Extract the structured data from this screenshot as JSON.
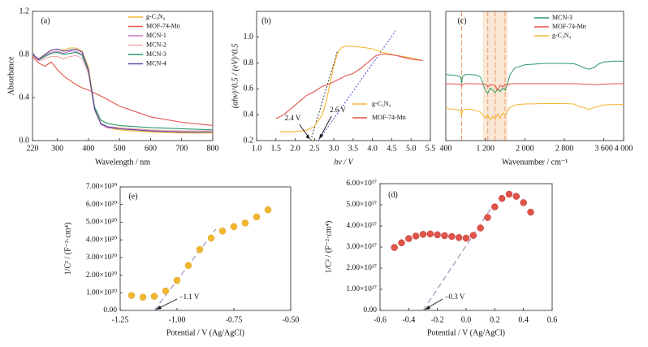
{
  "chart_data": [
    {
      "panel": "(a)",
      "type": "line",
      "xlabel": "Wavelength / nm",
      "ylabel": "Absorbance",
      "xlim": [
        220,
        800
      ],
      "ylim": [
        0.0,
        1.2
      ],
      "xticks": [
        "220",
        "300",
        "400",
        "500",
        "600",
        "700",
        "800"
      ],
      "yticks": [
        "0.0",
        "0.4",
        "0.8",
        "1.2"
      ],
      "legend_position": "top-right",
      "series": [
        {
          "name": "g-C₃N₄",
          "color": "#f2b630",
          "x": [
            220,
            240,
            260,
            280,
            300,
            320,
            340,
            360,
            380,
            400,
            410,
            420,
            440,
            460,
            500,
            600,
            700,
            800
          ],
          "y": [
            0.8,
            0.76,
            0.8,
            0.84,
            0.85,
            0.84,
            0.86,
            0.86,
            0.83,
            0.68,
            0.5,
            0.3,
            0.16,
            0.12,
            0.1,
            0.08,
            0.07,
            0.07
          ]
        },
        {
          "name": "MOF-74-Mn",
          "color": "#e2534a",
          "x": [
            220,
            240,
            260,
            280,
            300,
            320,
            340,
            360,
            380,
            400,
            450,
            500,
            600,
            700,
            800
          ],
          "y": [
            0.78,
            0.72,
            0.69,
            0.73,
            0.66,
            0.6,
            0.56,
            0.52,
            0.49,
            0.47,
            0.4,
            0.32,
            0.22,
            0.17,
            0.14
          ]
        },
        {
          "name": "MCN-1",
          "color": "#d175c9",
          "x": [
            220,
            240,
            260,
            280,
            300,
            320,
            340,
            360,
            380,
            400,
            410,
            420,
            440,
            460,
            500,
            600,
            700,
            800
          ],
          "y": [
            0.8,
            0.76,
            0.79,
            0.82,
            0.83,
            0.81,
            0.83,
            0.83,
            0.8,
            0.64,
            0.46,
            0.28,
            0.15,
            0.12,
            0.11,
            0.09,
            0.08,
            0.08
          ]
        },
        {
          "name": "MCN-2",
          "color": "#f2a8a8",
          "x": [
            220,
            240,
            260,
            280,
            300,
            320,
            340,
            360,
            380,
            400,
            410,
            420,
            440,
            460,
            500,
            600,
            700,
            800
          ],
          "y": [
            0.79,
            0.74,
            0.76,
            0.78,
            0.78,
            0.76,
            0.78,
            0.79,
            0.76,
            0.62,
            0.45,
            0.28,
            0.16,
            0.13,
            0.12,
            0.1,
            0.09,
            0.09
          ]
        },
        {
          "name": "MCN-3",
          "color": "#2a9a6a",
          "x": [
            220,
            240,
            260,
            280,
            300,
            320,
            340,
            360,
            380,
            400,
            410,
            420,
            440,
            460,
            500,
            600,
            700,
            800
          ],
          "y": [
            0.8,
            0.75,
            0.78,
            0.81,
            0.82,
            0.8,
            0.81,
            0.82,
            0.79,
            0.65,
            0.48,
            0.31,
            0.19,
            0.16,
            0.14,
            0.12,
            0.11,
            0.1
          ]
        },
        {
          "name": "MCN-4",
          "color": "#5b4aa0",
          "x": [
            220,
            240,
            260,
            280,
            300,
            320,
            340,
            360,
            380,
            400,
            410,
            420,
            440,
            460,
            500,
            600,
            700,
            800
          ],
          "y": [
            0.8,
            0.75,
            0.8,
            0.84,
            0.85,
            0.83,
            0.84,
            0.85,
            0.82,
            0.66,
            0.47,
            0.29,
            0.16,
            0.13,
            0.11,
            0.09,
            0.08,
            0.08
          ]
        }
      ]
    },
    {
      "panel": "(b)",
      "type": "line",
      "xlabel": "hν / V",
      "ylabel": "(αhν)^0.5 / (eV)^0.5",
      "xlim": [
        1.0,
        5.5
      ],
      "ylim": [
        0.2,
        1.2
      ],
      "xticks": [
        "1.0",
        "1.5",
        "2.0",
        "2.5",
        "3.0",
        "3.5",
        "4.0",
        "4.5",
        "5.0",
        "5.5"
      ],
      "yticks": [
        "0.2",
        "0.4",
        "0.6",
        "0.8",
        "1.0"
      ],
      "legend_position": "bottom-right",
      "series": [
        {
          "name": "g-C₃N₄",
          "color": "#f2b630",
          "x": [
            1.6,
            2.0,
            2.3,
            2.5,
            2.7,
            2.8,
            2.9,
            3.0,
            3.1,
            3.2,
            3.3,
            3.5,
            3.8,
            4.0,
            4.3,
            4.6,
            5.0,
            5.3
          ],
          "y": [
            0.27,
            0.27,
            0.28,
            0.31,
            0.4,
            0.5,
            0.64,
            0.78,
            0.88,
            0.92,
            0.93,
            0.93,
            0.92,
            0.91,
            0.88,
            0.86,
            0.84,
            0.82
          ]
        },
        {
          "name": "MOF-74-Mn",
          "color": "#e2534a",
          "x": [
            1.5,
            1.7,
            1.9,
            2.1,
            2.3,
            2.5,
            2.7,
            2.9,
            3.1,
            3.3,
            3.5,
            3.7,
            3.9,
            4.1,
            4.3,
            4.6,
            5.0,
            5.3
          ],
          "y": [
            0.37,
            0.4,
            0.45,
            0.5,
            0.55,
            0.58,
            0.62,
            0.64,
            0.67,
            0.7,
            0.72,
            0.76,
            0.81,
            0.86,
            0.87,
            0.86,
            0.83,
            0.82
          ]
        }
      ],
      "fits": [
        {
          "style": "dotted-black",
          "x": [
            2.4,
            3.1
          ],
          "y": [
            0.2,
            0.9
          ]
        },
        {
          "style": "dotted-blue",
          "x": [
            2.6,
            4.6
          ],
          "y": [
            0.2,
            1.05
          ]
        }
      ],
      "annotations": [
        {
          "text": "2.4 V",
          "x": 2.4,
          "y": 0.2
        },
        {
          "text": "2.6 V",
          "x": 2.6,
          "y": 0.2
        }
      ]
    },
    {
      "panel": "(c)",
      "type": "line",
      "xlabel": "Wavenumber / cm⁻¹",
      "xlim": [
        400,
        4000
      ],
      "xticks": [
        "400",
        "1 200",
        "2 000",
        "2 800",
        "3 600",
        "4 000"
      ],
      "legend_position": "top-left",
      "highlight_bands": [
        [
          1150,
          1650
        ]
      ],
      "marker_lines": [
        720,
        1250,
        1400,
        1600
      ],
      "series": [
        {
          "name": "MCN-3",
          "color": "#2a9a6a",
          "x": [
            400,
            600,
            700,
            720,
            740,
            800,
            900,
            1000,
            1100,
            1200,
            1250,
            1300,
            1350,
            1400,
            1450,
            1500,
            1550,
            1600,
            1650,
            1700,
            1800,
            2000,
            2400,
            2800,
            3000,
            3100,
            3200,
            3300,
            3400,
            3500,
            3600,
            3800,
            4000
          ],
          "y": [
            0.6,
            0.58,
            0.55,
            0.4,
            0.56,
            0.6,
            0.6,
            0.59,
            0.55,
            0.25,
            0.18,
            0.3,
            0.25,
            0.2,
            0.28,
            0.22,
            0.3,
            0.25,
            0.4,
            0.6,
            0.75,
            0.82,
            0.85,
            0.85,
            0.84,
            0.8,
            0.75,
            0.72,
            0.76,
            0.84,
            0.88,
            0.9,
            0.9
          ]
        },
        {
          "name": "MOF-74-Mn",
          "color": "#e2534a",
          "x": [
            400,
            700,
            720,
            740,
            800,
            1000,
            1200,
            1250,
            1300,
            1400,
            1450,
            1500,
            1550,
            1600,
            1650,
            1700,
            2000,
            2800,
            3000,
            3200,
            3400,
            3600,
            3800,
            4000
          ],
          "y": [
            0.27,
            0.26,
            0.22,
            0.26,
            0.27,
            0.27,
            0.26,
            0.2,
            0.25,
            0.23,
            0.12,
            0.24,
            0.2,
            0.26,
            0.24,
            0.27,
            0.27,
            0.27,
            0.27,
            0.26,
            0.25,
            0.26,
            0.27,
            0.27
          ]
        },
        {
          "name": "g-C₃N₄",
          "color": "#f2b630",
          "x": [
            400,
            600,
            700,
            720,
            740,
            800,
            900,
            1000,
            1100,
            1200,
            1250,
            1300,
            1350,
            1400,
            1450,
            1500,
            1550,
            1600,
            1650,
            1700,
            1800,
            2000,
            2400,
            2800,
            3000,
            3100,
            3200,
            3300,
            3400,
            3600,
            3800,
            4000
          ],
          "y": [
            0.02,
            0.0,
            -0.02,
            -0.15,
            -0.02,
            0.0,
            0.0,
            -0.02,
            -0.06,
            -0.2,
            -0.12,
            -0.24,
            -0.15,
            -0.22,
            -0.1,
            -0.2,
            -0.08,
            -0.14,
            -0.04,
            0.05,
            0.1,
            0.12,
            0.13,
            0.13,
            0.12,
            0.06,
            0.04,
            0.0,
            0.04,
            0.1,
            0.11,
            0.11
          ]
        }
      ]
    },
    {
      "panel": "(e)",
      "type": "scatter",
      "xlabel": "Potential / V (Ag/AgCl)",
      "ylabel": "1/C² / (F⁻²·cm⁴)",
      "xlim": [
        -1.25,
        -0.5
      ],
      "ylim": [
        0,
        7e+20
      ],
      "xticks": [
        "-1.25",
        "-1.00",
        "-0.75",
        "-0.50"
      ],
      "yticks": [
        "0.00",
        "1.00×10²⁰",
        "2.00×10²⁰",
        "3.00×10²⁰",
        "4.00×10²⁰",
        "5.00×10²⁰",
        "6.00×10²⁰",
        "7.00×10²⁰"
      ],
      "color": "#f2b630",
      "x": [
        -1.2,
        -1.15,
        -1.1,
        -1.05,
        -1.0,
        -0.95,
        -0.9,
        -0.85,
        -0.8,
        -0.75,
        -0.7,
        -0.65,
        -0.6
      ],
      "y": [
        8.5e+19,
        7.5e+19,
        8e+19,
        1.1e+20,
        1.7e+20,
        2.55e+20,
        3.45e+20,
        4.1e+20,
        4.5e+20,
        4.75e+20,
        4.95e+20,
        5.3e+20,
        5.7e+20
      ],
      "fit": {
        "x": [
          -1.1,
          -0.83
        ],
        "y": [
          0,
          4.6e+20
        ]
      },
      "annotation": {
        "text": "–1.1 V",
        "x": -1.1,
        "y": 0
      }
    },
    {
      "panel": "(d)",
      "type": "scatter",
      "xlabel": "Potential / V (Ag/AgCl)",
      "ylabel": "1/C² / (F⁻²·cm⁴)",
      "xlim": [
        -0.6,
        0.6
      ],
      "ylim": [
        0,
        6e+17
      ],
      "xticks": [
        "-0.6",
        "-0.4",
        "-0.2",
        "0.0",
        "0.2",
        "0.4",
        "0.6"
      ],
      "yticks": [
        "0.00",
        "1.00×10¹⁷",
        "2.00×10¹⁷",
        "3.00×10¹⁷",
        "4.00×10¹⁷",
        "5.00×10¹⁷",
        "6.00×10¹⁷"
      ],
      "color": "#e2534a",
      "x": [
        -0.5,
        -0.45,
        -0.4,
        -0.35,
        -0.3,
        -0.25,
        -0.2,
        -0.15,
        -0.1,
        -0.05,
        0.0,
        0.05,
        0.1,
        0.15,
        0.2,
        0.25,
        0.3,
        0.35,
        0.4,
        0.45
      ],
      "y": [
        2.98e+17,
        3.2e+17,
        3.4e+17,
        3.52e+17,
        3.6e+17,
        3.62e+17,
        3.58e+17,
        3.54e+17,
        3.5e+17,
        3.45e+17,
        3.42e+17,
        3.55e+17,
        3.9e+17,
        4.4e+17,
        4.9e+17,
        5.3e+17,
        5.5e+17,
        5.4e+17,
        5.1e+17,
        4.65e+17
      ],
      "fit": {
        "x": [
          -0.3,
          0.18
        ],
        "y": [
          0,
          4.9e+17
        ]
      },
      "annotation": {
        "text": "–0.3 V",
        "x": -0.3,
        "y": 0
      }
    }
  ]
}
